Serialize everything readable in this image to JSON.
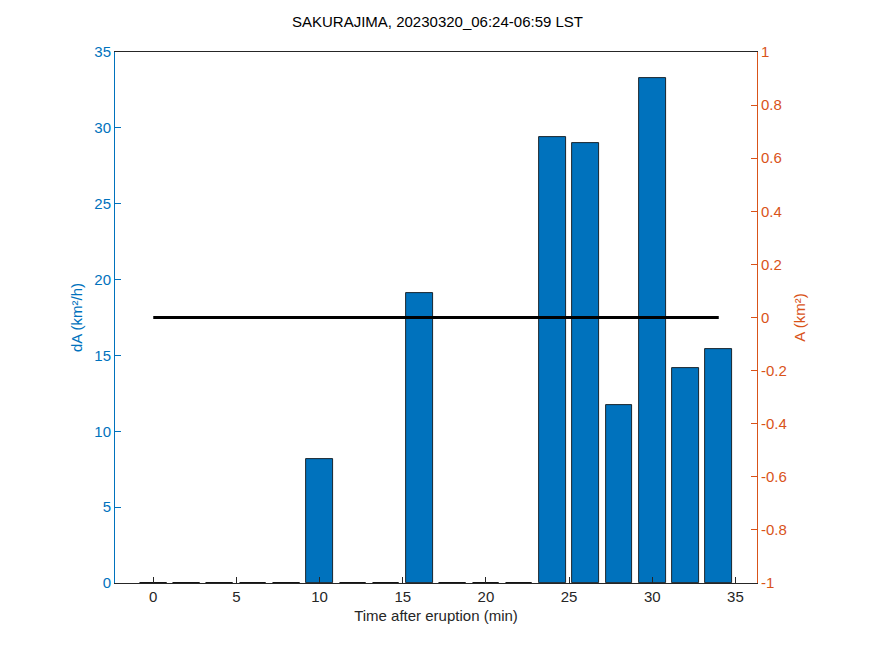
{
  "chart_data": {
    "type": "bar",
    "title": "SAKURAJIMA, 20230320_06:24-06:59 LST",
    "x_label": "Time after eruption (min)",
    "y_label": "dA (km²/h)",
    "y2_label": "A (km²)",
    "x": [
      0,
      2,
      4,
      6,
      8,
      10,
      12,
      14,
      16,
      18,
      20,
      22,
      24,
      26,
      28,
      30,
      32,
      34
    ],
    "series": [
      {
        "type": "bar",
        "color": "#0072BD",
        "values": [
          0,
          0,
          0,
          0,
          0,
          8.2,
          0,
          0,
          19.1,
          0,
          0,
          0,
          29.4,
          29.0,
          11.7,
          33.3,
          14.2,
          15.4
        ]
      },
      {
        "type": "line",
        "color": "#000000",
        "axis": "y2",
        "values": [
          0,
          0,
          0,
          0,
          0,
          0,
          0,
          0,
          0,
          0,
          0,
          0,
          0,
          0,
          0,
          0,
          0,
          0
        ]
      }
    ],
    "xlim": [
      -2.3,
      36.3
    ],
    "xticks": [
      0,
      5,
      10,
      15,
      20,
      25,
      30,
      35
    ],
    "ylim": [
      0,
      35
    ],
    "yticks": [
      0,
      5,
      10,
      15,
      20,
      25,
      30,
      35
    ],
    "y2lim": [
      -1,
      1
    ],
    "y2ticks": [
      -1,
      -0.8,
      -0.6,
      -0.4,
      -0.2,
      0,
      0.2,
      0.4,
      0.6,
      0.8,
      1
    ],
    "grid": false
  }
}
